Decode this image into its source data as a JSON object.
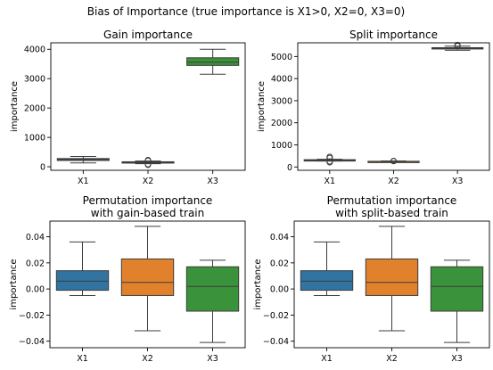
{
  "figure": {
    "title": "Bias of Importance (true importance is X1>0, X2=0, X3=0)"
  },
  "colors": {
    "X1": "#3274a1",
    "X2": "#e1812c",
    "X3": "#3a923a",
    "line": "#3c3c3c",
    "axes": "#000000"
  },
  "chart_data": [
    {
      "type": "box",
      "title": [
        "Gain importance"
      ],
      "ylabel": "importance",
      "categories": [
        "X1",
        "X2",
        "X3"
      ],
      "ylim": [
        -120,
        4220
      ],
      "yticks": [
        0,
        1000,
        2000,
        3000,
        4000
      ],
      "ytick_labels": [
        "0",
        "1000",
        "2000",
        "3000",
        "4000"
      ],
      "boxes": [
        {
          "category": "X1",
          "whisker_low": 130,
          "q1": 215,
          "median": 245,
          "q3": 280,
          "whisker_high": 350,
          "outliers": []
        },
        {
          "category": "X2",
          "whisker_low": 105,
          "q1": 130,
          "median": 150,
          "q3": 170,
          "whisker_high": 195,
          "outliers": [
            65,
            85,
            205,
            230
          ]
        },
        {
          "category": "X3",
          "whisker_low": 3150,
          "q1": 3450,
          "median": 3560,
          "q3": 3710,
          "whisker_high": 4000,
          "outliers": []
        }
      ]
    },
    {
      "type": "box",
      "title": [
        "Split importance"
      ],
      "ylabel": "importance",
      "categories": [
        "X1",
        "X2",
        "X3"
      ],
      "ylim": [
        -150,
        5620
      ],
      "yticks": [
        0,
        1000,
        2000,
        3000,
        4000,
        5000
      ],
      "ytick_labels": [
        "0",
        "1000",
        "2000",
        "3000",
        "4000",
        "5000"
      ],
      "boxes": [
        {
          "category": "X1",
          "whisker_low": 270,
          "q1": 295,
          "median": 310,
          "q3": 330,
          "whisker_high": 350,
          "outliers": [
            210,
            250,
            410,
            460
          ]
        },
        {
          "category": "X2",
          "whisker_low": 215,
          "q1": 235,
          "median": 245,
          "q3": 258,
          "whisker_high": 275,
          "outliers": [
            265,
            275
          ]
        },
        {
          "category": "X3",
          "whisker_low": 5280,
          "q1": 5340,
          "median": 5370,
          "q3": 5400,
          "whisker_high": 5470,
          "outliers": [
            5480,
            5520
          ]
        }
      ]
    },
    {
      "type": "box",
      "title": [
        "Permutation importance",
        "with gain-based train"
      ],
      "ylabel": "importance",
      "categories": [
        "X1",
        "X2",
        "X3"
      ],
      "ylim": [
        -0.045,
        0.052
      ],
      "yticks": [
        -0.04,
        -0.02,
        0.0,
        0.02,
        0.04
      ],
      "ytick_labels": [
        "−0.04",
        "−0.02",
        "0.00",
        "0.02",
        "0.04"
      ],
      "boxes": [
        {
          "category": "X1",
          "whisker_low": -0.005,
          "q1": -0.001,
          "median": 0.006,
          "q3": 0.014,
          "whisker_high": 0.036,
          "outliers": []
        },
        {
          "category": "X2",
          "whisker_low": -0.032,
          "q1": -0.005,
          "median": 0.005,
          "q3": 0.023,
          "whisker_high": 0.048,
          "outliers": []
        },
        {
          "category": "X3",
          "whisker_low": -0.041,
          "q1": -0.017,
          "median": 0.002,
          "q3": 0.017,
          "whisker_high": 0.022,
          "outliers": []
        }
      ]
    },
    {
      "type": "box",
      "title": [
        "Permutation importance",
        "with split-based train"
      ],
      "ylabel": "importance",
      "categories": [
        "X1",
        "X2",
        "X3"
      ],
      "ylim": [
        -0.045,
        0.052
      ],
      "yticks": [
        -0.04,
        -0.02,
        0.0,
        0.02,
        0.04
      ],
      "ytick_labels": [
        "−0.04",
        "−0.02",
        "0.00",
        "0.02",
        "0.04"
      ],
      "boxes": [
        {
          "category": "X1",
          "whisker_low": -0.005,
          "q1": -0.001,
          "median": 0.006,
          "q3": 0.014,
          "whisker_high": 0.036,
          "outliers": []
        },
        {
          "category": "X2",
          "whisker_low": -0.032,
          "q1": -0.005,
          "median": 0.005,
          "q3": 0.023,
          "whisker_high": 0.048,
          "outliers": []
        },
        {
          "category": "X3",
          "whisker_low": -0.041,
          "q1": -0.017,
          "median": 0.002,
          "q3": 0.017,
          "whisker_high": 0.022,
          "outliers": []
        }
      ]
    }
  ]
}
